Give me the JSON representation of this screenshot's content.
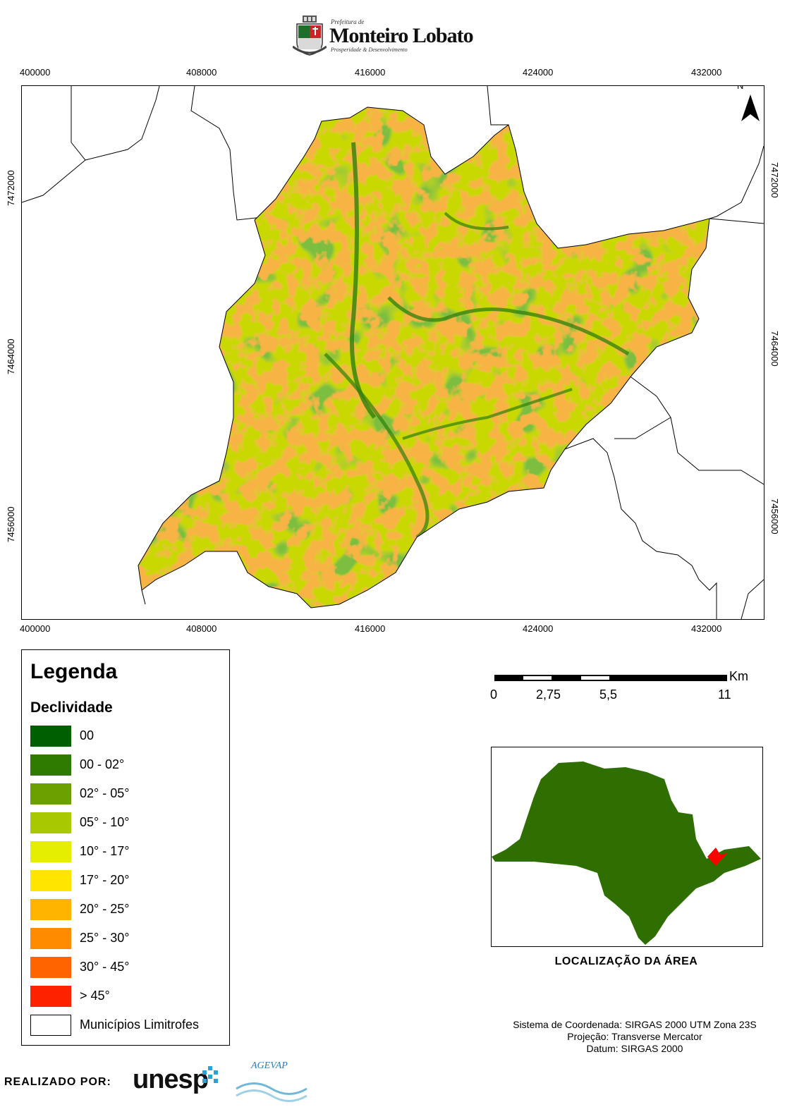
{
  "header": {
    "logo_prefix": "Prefeitura de",
    "logo_title": "Monteiro Lobato",
    "logo_subtitle": "Prosperidade & Desenvolvimento"
  },
  "map": {
    "x_ticks": [
      "400000",
      "408000",
      "416000",
      "424000",
      "432000"
    ],
    "y_ticks": [
      "7472000",
      "7464000",
      "7456000"
    ],
    "north_label": "N",
    "colors": {
      "area_base": "#c8d800",
      "green_dark": "#3a8a0c",
      "orange": "#f08a10",
      "red": "#f0501a",
      "boundary": "#000000"
    }
  },
  "legend": {
    "title": "Legenda",
    "subtitle": "Declividade",
    "items": [
      {
        "label": "00",
        "color": "#006000"
      },
      {
        "label": "00 - 02°",
        "color": "#2f7a00"
      },
      {
        "label": "02° - 05°",
        "color": "#6aa000"
      },
      {
        "label": "05° - 10°",
        "color": "#a8c800"
      },
      {
        "label": "10° - 17°",
        "color": "#e6ee00"
      },
      {
        "label": "17° - 20°",
        "color": "#ffe600"
      },
      {
        "label": "20° - 25°",
        "color": "#ffb400"
      },
      {
        "label": "25° - 30°",
        "color": "#ff8c00"
      },
      {
        "label": "30° - 45°",
        "color": "#ff6400"
      },
      {
        "label": "> 45°",
        "color": "#ff2200"
      },
      {
        "label": "Municípios Limitrofes",
        "color": "#ffffff"
      }
    ]
  },
  "scale_bar": {
    "unit": "Km",
    "labels": [
      "0",
      "2,75",
      "5,5",
      "11"
    ]
  },
  "inset": {
    "title": "LOCALIZAÇÃO DA ÁREA",
    "state_color": "#2f6e00",
    "highlight_color": "#ff0000"
  },
  "crs": {
    "line1": "Sistema de Coordenada: SIRGAS 2000 UTM Zona 23S",
    "line2": "Projeção: Transverse Mercator",
    "line3": "Datum: SIRGAS 2000"
  },
  "footer": {
    "label": "REALIZADO POR:",
    "logo1": "unesp",
    "logo2": "AGEVAP"
  }
}
